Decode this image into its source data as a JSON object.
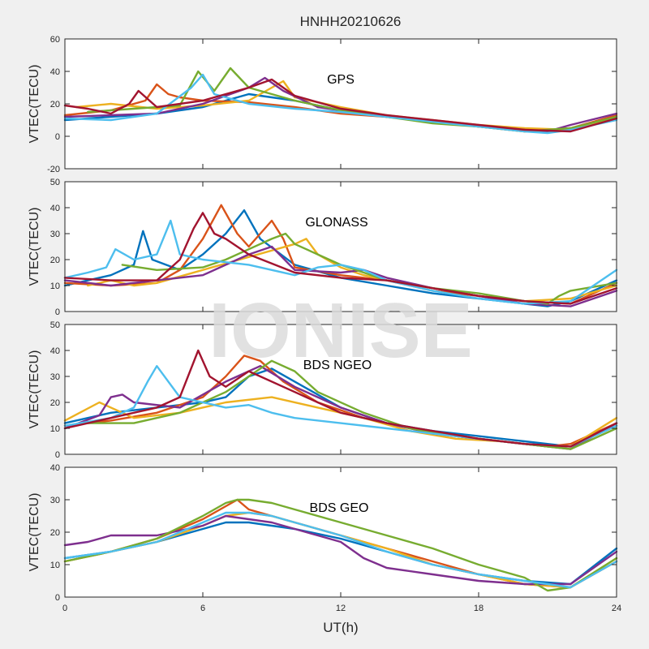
{
  "figure": {
    "title": "HNHH20210626",
    "xlabel": "UT(h)",
    "watermark": "IONISE",
    "background": "#f0f0f0",
    "axes_bg": "#ffffff"
  },
  "colors": [
    "#0072BD",
    "#D95319",
    "#EDB120",
    "#7E2F8E",
    "#77AC30",
    "#4DBEEE",
    "#A2142F"
  ],
  "chart_data": [
    {
      "type": "line",
      "label": "GPS",
      "ylabel": "VTEC(TECU)",
      "xlim": [
        0,
        24
      ],
      "ylim": [
        -20,
        60
      ],
      "yticks": [
        -20,
        0,
        20,
        40,
        60
      ],
      "xticks": [
        0,
        6,
        12,
        18,
        24
      ],
      "series": [
        {
          "x": [
            0,
            2,
            4,
            6,
            7,
            8,
            10,
            12,
            14,
            16,
            18,
            20,
            21,
            22,
            24
          ],
          "y": [
            10,
            12,
            14,
            18,
            22,
            26,
            22,
            16,
            12,
            9,
            6,
            4,
            3,
            4,
            12
          ]
        },
        {
          "x": [
            0,
            2,
            3.5,
            4,
            4.5,
            5,
            6,
            8,
            10,
            12,
            14,
            16,
            18,
            20,
            22,
            24
          ],
          "y": [
            13,
            16,
            22,
            32,
            26,
            24,
            22,
            21,
            18,
            14,
            12,
            9,
            6,
            3,
            5,
            13
          ]
        },
        {
          "x": [
            0.5,
            2,
            4,
            6,
            8,
            9.5,
            10,
            12,
            14,
            16,
            18,
            20,
            22,
            24
          ],
          "y": [
            18,
            20,
            17,
            19,
            22,
            34,
            24,
            18,
            13,
            10,
            7,
            5,
            4,
            11
          ]
        },
        {
          "x": [
            0,
            2,
            4,
            6,
            8,
            8.7,
            9.5,
            11,
            13,
            15,
            17,
            19,
            21,
            22,
            24
          ],
          "y": [
            12,
            13,
            14,
            20,
            30,
            36,
            28,
            18,
            14,
            11,
            8,
            5,
            3,
            7,
            14
          ]
        },
        {
          "x": [
            1,
            3,
            5,
            5.8,
            6.5,
            7.2,
            8,
            10,
            12,
            14,
            16,
            18,
            20,
            22,
            24
          ],
          "y": [
            15,
            17,
            19,
            40,
            28,
            42,
            30,
            22,
            16,
            12,
            8,
            6,
            3,
            5,
            12
          ]
        },
        {
          "x": [
            0,
            2,
            4,
            5.5,
            6,
            6.5,
            8,
            10,
            12,
            14,
            16,
            18,
            20,
            21,
            22,
            24
          ],
          "y": [
            11,
            10,
            14,
            30,
            38,
            26,
            20,
            17,
            15,
            12,
            9,
            6,
            3,
            2,
            4,
            10
          ]
        },
        {
          "x": [
            0,
            1,
            2,
            2.8,
            3.2,
            4,
            6,
            8,
            9,
            10,
            12,
            14,
            16,
            18,
            20,
            22,
            24
          ],
          "y": [
            19,
            17,
            14,
            20,
            28,
            18,
            22,
            30,
            35,
            25,
            17,
            13,
            10,
            7,
            4,
            3,
            11
          ]
        }
      ]
    },
    {
      "type": "line",
      "label": "GLONASS",
      "ylabel": "VTEC(TECU)",
      "xlim": [
        0,
        24
      ],
      "ylim": [
        0,
        50
      ],
      "yticks": [
        0,
        10,
        20,
        30,
        40,
        50
      ],
      "xticks": [
        0,
        6,
        12,
        18,
        24
      ],
      "series": [
        {
          "x": [
            0,
            2,
            3,
            3.4,
            3.8,
            5,
            6,
            7,
            7.8,
            8.5,
            10,
            12,
            14,
            16,
            18,
            20,
            21,
            22,
            24
          ],
          "y": [
            10,
            14,
            18,
            31,
            20,
            16,
            22,
            30,
            39,
            28,
            18,
            13,
            10,
            7,
            5,
            3,
            2,
            4,
            12
          ]
        },
        {
          "x": [
            0,
            2,
            4,
            5,
            6,
            6.8,
            7.5,
            8,
            9,
            9.5,
            10,
            12,
            14,
            16,
            18,
            20,
            22,
            24
          ],
          "y": [
            11,
            10,
            11,
            16,
            28,
            41,
            30,
            25,
            35,
            28,
            17,
            14,
            12,
            8,
            6,
            4,
            3,
            11
          ]
        },
        {
          "x": [
            1,
            2,
            3,
            4,
            10,
            10.5,
            11,
            12,
            13,
            14,
            16,
            18,
            20,
            22,
            24
          ],
          "y": [
            10,
            12,
            10,
            11,
            26,
            28,
            22,
            17,
            14,
            12,
            9,
            6,
            4,
            5,
            10
          ]
        },
        {
          "x": [
            0,
            2,
            4,
            6,
            7,
            8,
            9,
            10,
            12,
            13,
            14,
            16,
            18,
            20,
            22,
            24
          ],
          "y": [
            12,
            10,
            12,
            14,
            18,
            22,
            25,
            16,
            15,
            16,
            13,
            9,
            6,
            3,
            2,
            8
          ]
        },
        {
          "x": [
            2.5,
            4,
            6,
            7,
            8,
            9,
            9.6,
            10,
            12,
            14,
            16,
            18,
            20,
            21,
            21.5,
            22,
            24
          ],
          "y": [
            18,
            16,
            17,
            20,
            24,
            28,
            30,
            26,
            18,
            12,
            9,
            7,
            4,
            3,
            6,
            8,
            11
          ]
        },
        {
          "x": [
            0,
            1,
            1.8,
            2.2,
            3,
            4,
            4.6,
            5,
            6,
            8,
            10,
            11,
            12,
            13,
            14,
            16,
            18,
            20,
            22,
            24
          ],
          "y": [
            13,
            15,
            17,
            24,
            20,
            22,
            35,
            22,
            20,
            18,
            14,
            17,
            18,
            16,
            12,
            8,
            5,
            3,
            4,
            16
          ]
        },
        {
          "x": [
            0,
            2,
            4,
            5,
            5.6,
            6,
            6.5,
            7,
            8,
            10,
            12,
            14,
            16,
            18,
            20,
            22,
            24
          ],
          "y": [
            13,
            12,
            12,
            20,
            32,
            38,
            30,
            28,
            22,
            15,
            13,
            12,
            9,
            6,
            4,
            3,
            9
          ]
        }
      ]
    },
    {
      "type": "line",
      "label": "BDS NGEO",
      "ylabel": "VTEC(TECU)",
      "xlim": [
        0,
        24
      ],
      "ylim": [
        0,
        50
      ],
      "yticks": [
        0,
        10,
        20,
        30,
        40,
        50
      ],
      "xticks": [
        0,
        6,
        12,
        18,
        24
      ],
      "series": [
        {
          "x": [
            0,
            2,
            4,
            6,
            7,
            8,
            9,
            10,
            12,
            14,
            16,
            18,
            20,
            22,
            24
          ],
          "y": [
            12,
            16,
            18,
            20,
            22,
            30,
            33,
            28,
            18,
            12,
            9,
            7,
            5,
            3,
            11
          ]
        },
        {
          "x": [
            0,
            2,
            4,
            6,
            7,
            7.8,
            8.5,
            9.5,
            11,
            13,
            15,
            17,
            19,
            21,
            22,
            24
          ],
          "y": [
            11,
            13,
            16,
            22,
            30,
            38,
            36,
            28,
            20,
            14,
            10,
            7,
            5,
            3,
            4,
            12
          ]
        },
        {
          "x": [
            0,
            1.5,
            3,
            5,
            7,
            9,
            11,
            13,
            15,
            17,
            19,
            21,
            22,
            24
          ],
          "y": [
            13,
            20,
            14,
            16,
            20,
            22,
            18,
            14,
            9,
            6,
            5,
            3,
            3,
            14
          ]
        },
        {
          "x": [
            0,
            1.5,
            2,
            2.5,
            3,
            5,
            7,
            8.5,
            10,
            12,
            14,
            16,
            18,
            20,
            22,
            24
          ],
          "y": [
            10,
            15,
            22,
            23,
            20,
            18,
            28,
            34,
            26,
            18,
            12,
            8,
            6,
            4,
            2,
            12
          ]
        },
        {
          "x": [
            1,
            3,
            5,
            7,
            8,
            9,
            10,
            11,
            13,
            15,
            17,
            19,
            21,
            22,
            24
          ],
          "y": [
            12,
            12,
            16,
            24,
            30,
            36,
            32,
            24,
            16,
            10,
            7,
            5,
            3,
            2,
            10
          ]
        },
        {
          "x": [
            0,
            2,
            3,
            3.6,
            4,
            5,
            6,
            7,
            8,
            9,
            10,
            12,
            14,
            16,
            18,
            20,
            22,
            24
          ],
          "y": [
            11,
            14,
            18,
            28,
            34,
            22,
            20,
            18,
            19,
            16,
            14,
            12,
            10,
            8,
            6,
            4,
            3,
            11
          ]
        },
        {
          "x": [
            0,
            2,
            4,
            5,
            5.8,
            6.3,
            7,
            8,
            10,
            12,
            14,
            16,
            18,
            20,
            22,
            24
          ],
          "y": [
            10,
            14,
            18,
            22,
            40,
            30,
            26,
            32,
            24,
            16,
            12,
            9,
            6,
            4,
            3,
            12
          ]
        }
      ]
    },
    {
      "type": "line",
      "label": "BDS GEO",
      "ylabel": "VTEC(TECU)",
      "xlim": [
        0,
        24
      ],
      "ylim": [
        0,
        40
      ],
      "yticks": [
        0,
        10,
        20,
        30,
        40
      ],
      "xticks": [
        0,
        6,
        12,
        18,
        24
      ],
      "series": [
        {
          "x": [
            0,
            2,
            4,
            6,
            7,
            8,
            9,
            10,
            12,
            14,
            16,
            18,
            20,
            22,
            24
          ],
          "y": [
            12,
            14,
            17,
            21,
            23,
            23,
            22,
            21,
            18,
            14,
            10,
            7,
            5,
            4,
            15
          ]
        },
        {
          "x": [
            0,
            2,
            4,
            6,
            7,
            7.5,
            8,
            9,
            10,
            12,
            14,
            16,
            18,
            20,
            22,
            24
          ],
          "y": [
            11,
            14,
            18,
            24,
            28,
            30,
            27,
            25,
            23,
            19,
            15,
            11,
            7,
            4,
            3,
            11
          ]
        },
        {
          "x": [
            0,
            2,
            4,
            6,
            7,
            8,
            9,
            10,
            12,
            14,
            16,
            18,
            20,
            22,
            24
          ],
          "y": [
            11,
            14,
            17,
            22,
            25,
            26,
            25,
            23,
            19,
            15,
            10,
            7,
            4,
            3,
            12
          ]
        },
        {
          "x": [
            0,
            1,
            2,
            3,
            4,
            6,
            7,
            8,
            9,
            10,
            11,
            12,
            13,
            14,
            16,
            18,
            20,
            22,
            24
          ],
          "y": [
            16,
            17,
            19,
            19,
            19,
            22,
            25,
            24,
            23,
            21,
            19,
            17,
            12,
            9,
            7,
            5,
            4,
            4,
            14
          ]
        },
        {
          "x": [
            0,
            2,
            4,
            6,
            7,
            7.5,
            8,
            9,
            10,
            12,
            14,
            16,
            18,
            20,
            21,
            22,
            24
          ],
          "y": [
            11,
            14,
            18,
            25,
            29,
            30,
            30,
            29,
            27,
            23,
            19,
            15,
            10,
            6,
            2,
            3,
            12
          ]
        },
        {
          "x": [
            0,
            2,
            4,
            6,
            7,
            8,
            9,
            10,
            12,
            14,
            16,
            18,
            20,
            22,
            24
          ],
          "y": [
            12,
            14,
            17,
            23,
            26,
            26,
            25,
            23,
            19,
            14,
            10,
            7,
            5,
            3,
            11
          ]
        }
      ]
    }
  ]
}
